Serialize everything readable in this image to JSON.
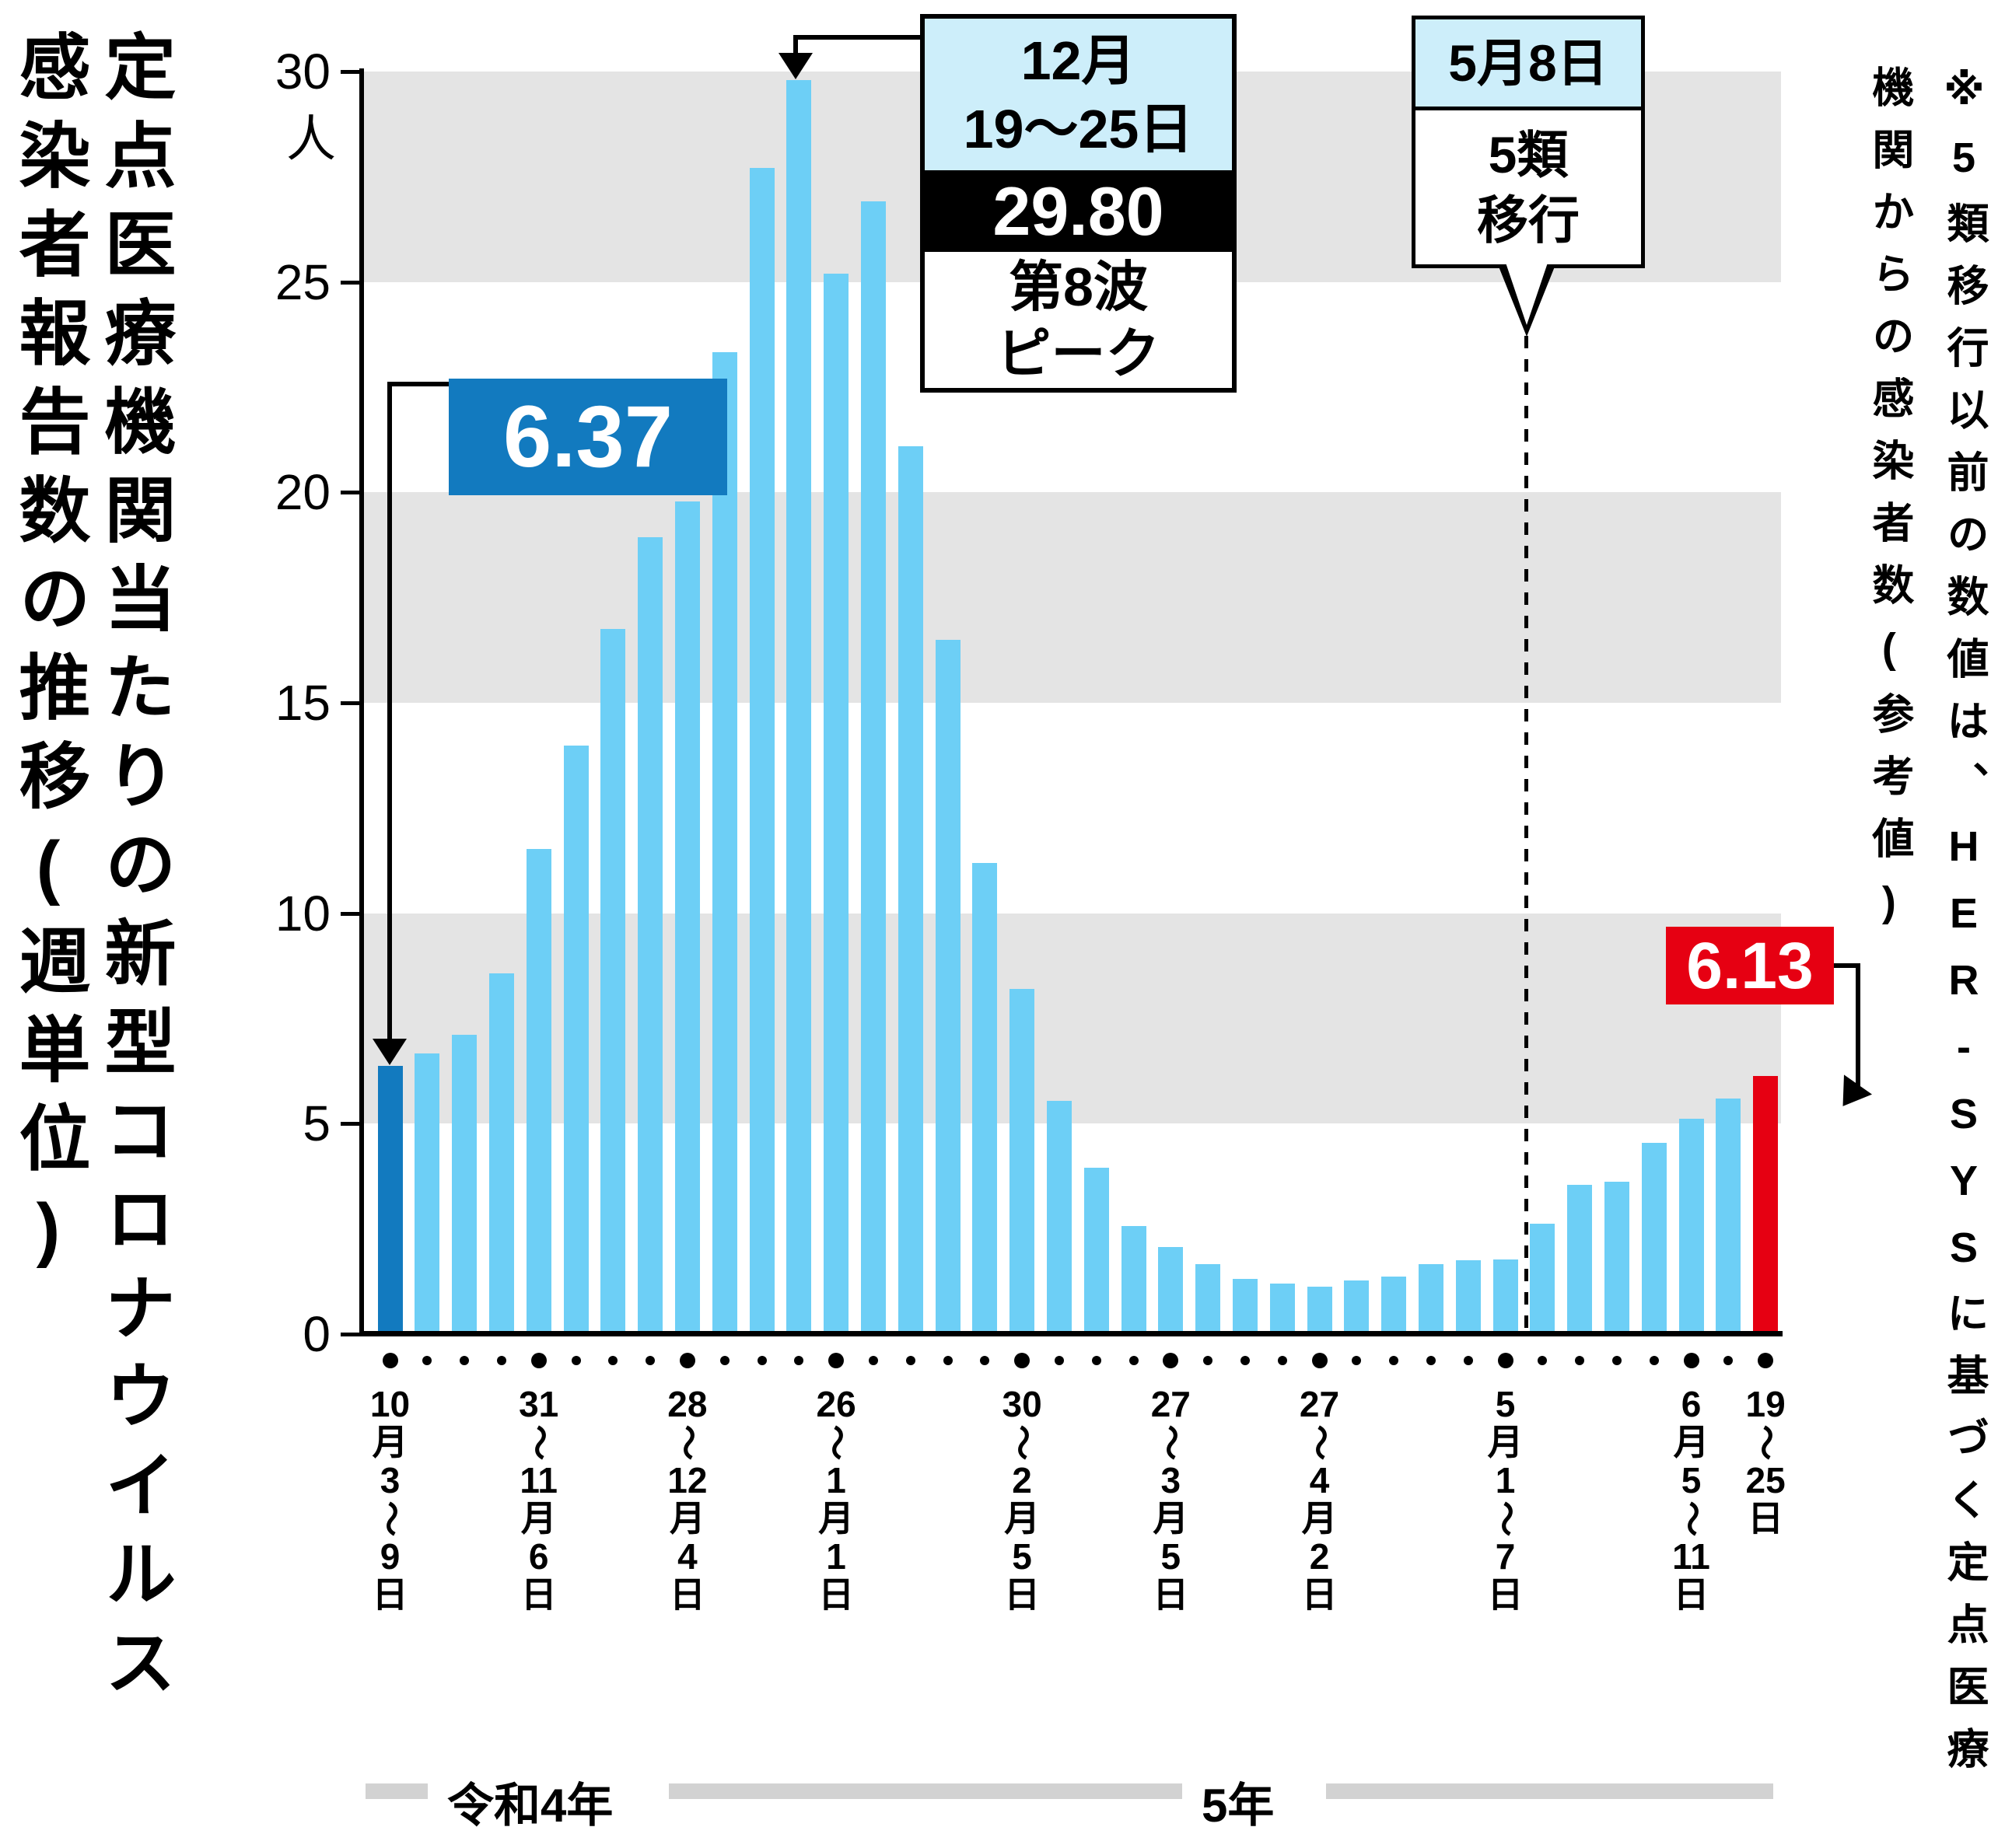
{
  "title": {
    "line1": "定点医療機関当たりの新型コロナウイルス",
    "line2": "感染者報告数の推移(週単位)"
  },
  "side_note": "※5類移行以前の数値は、HER-SYSに基づく定点医療機関からの感染者数(参考値)",
  "y_axis": {
    "unit": "人",
    "ticks": [
      30,
      25,
      20,
      15,
      10,
      5,
      0
    ]
  },
  "era": {
    "left": "令和4年",
    "right": "5年"
  },
  "annotations": {
    "first_value_label": "6.37",
    "last_value_label": "6.13",
    "peak_box": {
      "header_line1": "12月",
      "header_line2": "19〜25日",
      "value": "29.80",
      "body_line1": "第8波",
      "body_line2": "ピーク"
    },
    "transition_box": {
      "header": "5月8日",
      "body_line1": "5類",
      "body_line2": "移行"
    }
  },
  "colors": {
    "bar": "#6dcff6",
    "first_bar": "#127abf",
    "last_bar": "#e60012",
    "band": "#e4e4e4",
    "annotation_header": "#cdeefa",
    "era_rule": "#d2d2d2",
    "black": "#000000",
    "white": "#ffffff"
  },
  "chart_data": {
    "type": "bar",
    "title": "定点医療機関当たりの新型コロナウイルス感染者報告数の推移(週単位)",
    "ylabel": "人",
    "ylim": [
      0,
      30
    ],
    "yticks": [
      0,
      5,
      10,
      15,
      20,
      25,
      30
    ],
    "grid_bands": [
      [
        25,
        30
      ],
      [
        15,
        20
      ],
      [
        5,
        10
      ]
    ],
    "values": [
      6.37,
      6.67,
      7.11,
      8.58,
      11.53,
      13.99,
      16.76,
      18.93,
      19.78,
      23.33,
      27.71,
      29.8,
      25.19,
      26.92,
      21.1,
      16.5,
      11.2,
      8.2,
      5.55,
      3.95,
      2.57,
      2.07,
      1.66,
      1.32,
      1.21,
      1.12,
      1.27,
      1.37,
      1.66,
      1.75,
      1.77,
      2.63,
      3.55,
      3.63,
      4.55,
      5.11,
      5.6,
      6.13
    ],
    "highlight": {
      "first_index": 0,
      "first_value": 6.37,
      "peak_index": 11,
      "peak_value": 29.8,
      "last_index": 37,
      "last_value": 6.13
    },
    "transition_line_between": [
      30,
      31
    ],
    "x_tick_labels": [
      {
        "index": 0,
        "segments": [
          "10",
          "月",
          "3",
          "〜",
          "9",
          "日"
        ]
      },
      {
        "index": 4,
        "segments": [
          "31",
          "〜",
          "11",
          "月",
          "6",
          "日"
        ]
      },
      {
        "index": 8,
        "segments": [
          "28",
          "〜",
          "12",
          "月",
          "4",
          "日"
        ]
      },
      {
        "index": 12,
        "segments": [
          "26",
          "〜",
          "1",
          "月",
          "1",
          "日"
        ]
      },
      {
        "index": 17,
        "segments": [
          "30",
          "〜",
          "2",
          "月",
          "5",
          "日"
        ]
      },
      {
        "index": 21,
        "segments": [
          "27",
          "〜",
          "3",
          "月",
          "5",
          "日"
        ]
      },
      {
        "index": 25,
        "segments": [
          "27",
          "〜",
          "4",
          "月",
          "2",
          "日"
        ]
      },
      {
        "index": 30,
        "segments": [
          "5",
          "月",
          "1",
          "〜",
          "7",
          "日"
        ]
      },
      {
        "index": 35,
        "segments": [
          "6",
          "月",
          "5",
          "〜",
          "11",
          "日"
        ]
      },
      {
        "index": 37,
        "segments": [
          "19",
          "〜",
          "25",
          "日"
        ]
      }
    ]
  }
}
